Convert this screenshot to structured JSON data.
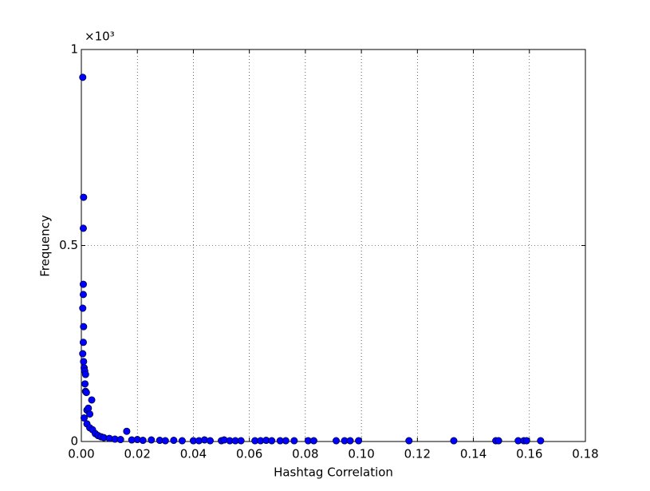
{
  "chart_data": {
    "type": "scatter",
    "x_label": "Hashtag Correlation",
    "y_label": "Frequency",
    "offset_label": "×10³",
    "xlim": [
      0,
      0.18
    ],
    "ylim": [
      0,
      1
    ],
    "xticks": [
      {
        "value": 0,
        "label": "0.00"
      },
      0.02,
      0.04,
      0.06,
      0.08,
      {
        "value": 0.1,
        "label": "0.10"
      },
      0.12,
      0.14,
      0.16,
      0.18
    ],
    "yticks": [
      0,
      0.5,
      1
    ],
    "grid": true,
    "x": [
      0.0005,
      0.0008,
      0.0007,
      0.0007,
      0.0007,
      0.0005,
      0.0008,
      0.0007,
      0.0005,
      0.0008,
      0.001,
      0.0012,
      0.0015,
      0.0013,
      0.0015,
      0.0018,
      0.0037,
      0.002,
      0.0025,
      0.003,
      0.001,
      0.002,
      0.003,
      0.004,
      0.005,
      0.006,
      0.007,
      0.008,
      0.0162,
      0.01,
      0.012,
      0.014,
      0.018,
      0.02,
      0.022,
      0.025,
      0.028,
      0.03,
      0.033,
      0.036,
      0.04,
      0.042,
      0.044,
      0.046,
      0.05,
      0.051,
      0.053,
      0.055,
      0.057,
      0.062,
      0.064,
      0.066,
      0.068,
      0.071,
      0.073,
      0.076,
      0.081,
      0.083,
      0.091,
      0.094,
      0.096,
      0.099,
      0.117,
      0.133,
      0.148,
      0.149,
      0.156,
      0.158,
      0.159,
      0.164
    ],
    "series": [
      {
        "color": "#0000ff",
        "values": [
          0.929,
          0.623,
          0.544,
          0.401,
          0.375,
          0.34,
          0.293,
          0.253,
          0.224,
          0.204,
          0.188,
          0.18,
          0.171,
          0.147,
          0.128,
          0.125,
          0.106,
          0.08,
          0.085,
          0.07,
          0.06,
          0.045,
          0.035,
          0.03,
          0.02,
          0.015,
          0.012,
          0.01,
          0.026,
          0.008,
          0.006,
          0.005,
          0.004,
          0.005,
          0.003,
          0.004,
          0.003,
          0.002,
          0.003,
          0.002,
          0.002,
          0.002,
          0.004,
          0.002,
          0.002,
          0.004,
          0.002,
          0.002,
          0.002,
          0.002,
          0.002,
          0.003,
          0.002,
          0.002,
          0.002,
          0.002,
          0.002,
          0.002,
          0.002,
          0.002,
          0.002,
          0.002,
          0.002,
          0.002,
          0.002,
          0.002,
          0.002,
          0.002,
          0.002,
          0.002
        ]
      }
    ]
  }
}
